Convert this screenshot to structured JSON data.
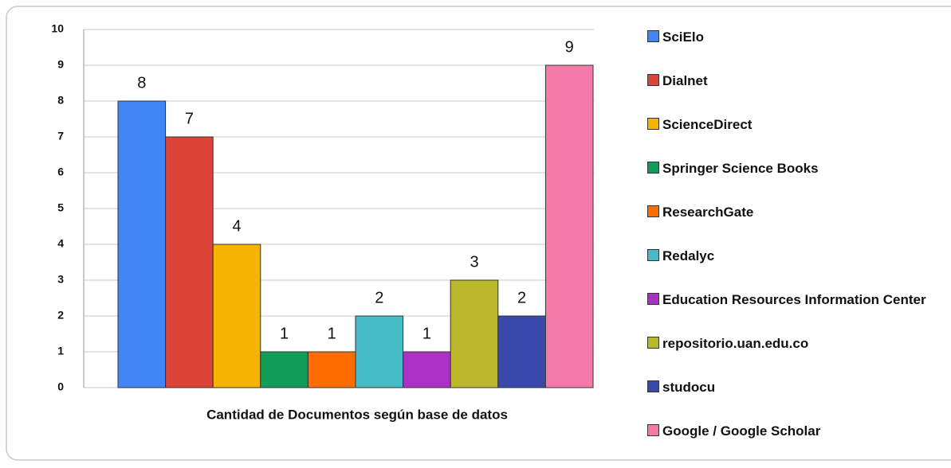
{
  "chart_data": {
    "type": "bar",
    "x_label": "Cantidad de Documentos según base de datos",
    "series": [
      {
        "name": "SciElo",
        "color": "#4285f4",
        "values": [
          8
        ]
      },
      {
        "name": "Dialnet",
        "color": "#db4437",
        "values": [
          7
        ]
      },
      {
        "name": "ScienceDirect",
        "color": "#f4b400",
        "values": [
          4
        ]
      },
      {
        "name": "Springer Science Books",
        "color": "#0f9d58",
        "values": [
          1
        ]
      },
      {
        "name": "ResearchGate",
        "color": "#ff6d00",
        "values": [
          1
        ]
      },
      {
        "name": "Redalyc",
        "color": "#46bdc6",
        "values": [
          2
        ]
      },
      {
        "name": "Education Resources Information Center",
        "color": "#ab30c4",
        "values": [
          1
        ]
      },
      {
        "name": "repositorio.uan.edu.co",
        "color": "#bcb82b",
        "values": [
          3
        ]
      },
      {
        "name": "studocu",
        "color": "#3949ab",
        "values": [
          2
        ]
      },
      {
        "name": "Google / Google Scholar",
        "color": "#f47ba9",
        "values": [
          9
        ]
      }
    ],
    "ylim": [
      0,
      10
    ],
    "yticks": [
      0,
      1,
      2,
      3,
      4,
      5,
      6,
      7,
      8,
      9,
      10
    ],
    "grid": true,
    "legend": "right"
  }
}
